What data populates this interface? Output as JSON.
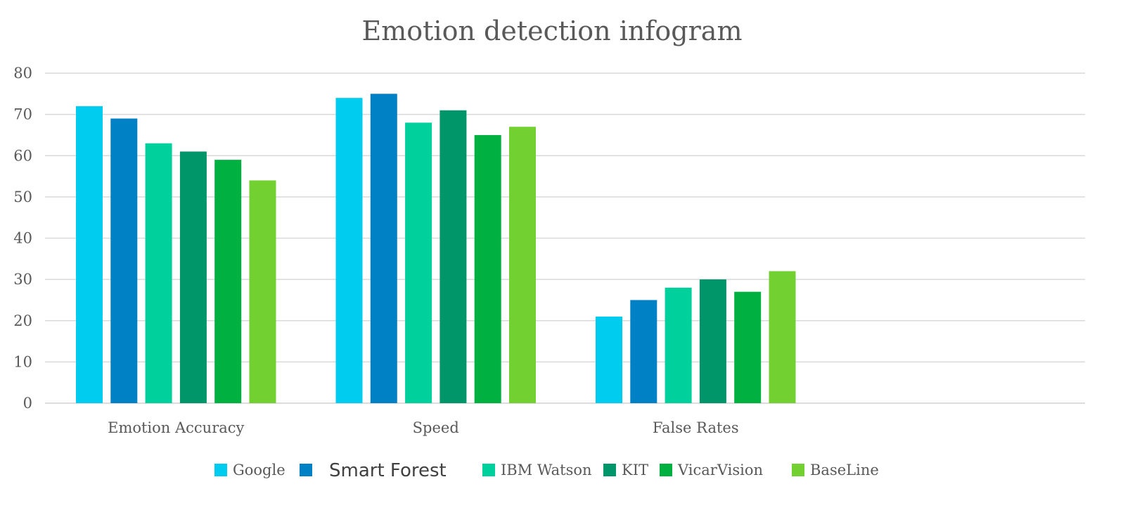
{
  "chart_data": {
    "type": "bar",
    "title": "Emotion detection infogram",
    "xlabel": "",
    "ylabel": "",
    "ylim": [
      0,
      80
    ],
    "yticks": [
      0,
      10,
      20,
      30,
      40,
      50,
      60,
      70,
      80
    ],
    "grid": true,
    "legend_position": "bottom",
    "categories": [
      "Emotion Accuracy",
      "Speed",
      "False Rates"
    ],
    "series": [
      {
        "name": "Google",
        "color": "#00ccf0",
        "values": [
          72,
          74,
          21
        ]
      },
      {
        "name": "Smart Forest",
        "color": "#0081c6",
        "values": [
          69,
          75,
          25
        ]
      },
      {
        "name": "IBM Watson",
        "color": "#00d19c",
        "values": [
          63,
          68,
          28
        ]
      },
      {
        "name": "KIT",
        "color": "#00966a",
        "values": [
          61,
          71,
          30
        ]
      },
      {
        "name": "VicarVision",
        "color": "#00b142",
        "values": [
          59,
          65,
          27
        ]
      },
      {
        "name": "BaseLine",
        "color": "#72d130",
        "values": [
          54,
          67,
          32
        ]
      }
    ]
  }
}
